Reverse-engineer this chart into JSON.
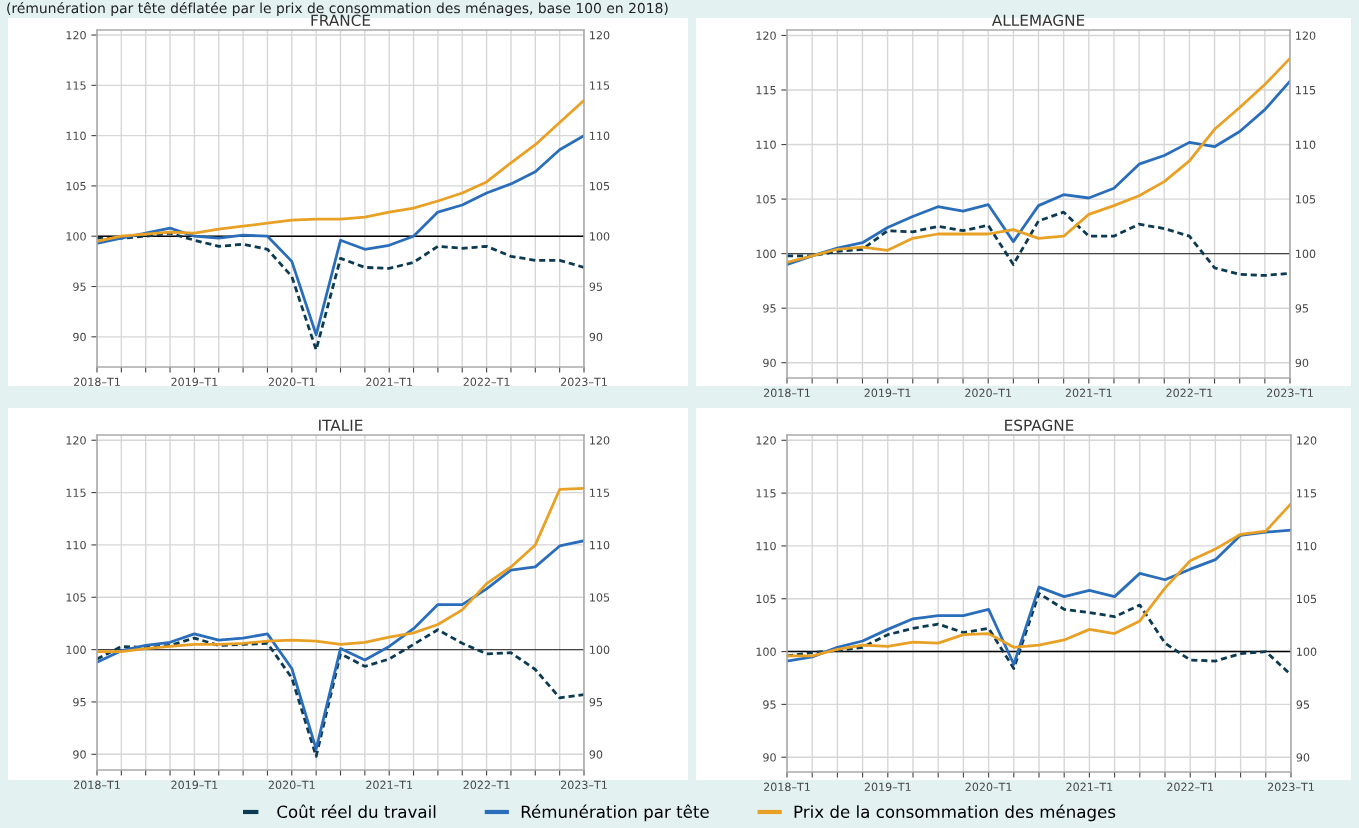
{
  "chart_data": [
    {
      "type": "line",
      "title": "FRANCE",
      "subtitle": "(rémunération par tête déflatée par le prix de consommation des ménages, base 100 en 2018)",
      "categories": [
        "2018–T1",
        null,
        null,
        null,
        "2019–T1",
        null,
        null,
        null,
        "2020–T1",
        null,
        null,
        null,
        "2021–T1",
        null,
        null,
        null,
        "2022–T1",
        null,
        null,
        null,
        "2023–T1"
      ],
      "ylim": [
        87,
        120.5
      ],
      "yticks": [
        90,
        95,
        100,
        105,
        110,
        115,
        120
      ],
      "y2lim": [
        87,
        120.5
      ],
      "y2ticks": [
        90,
        95,
        100,
        105,
        110,
        115,
        120
      ],
      "grid": true,
      "legend": "bottom",
      "line_style": "solid",
      "ref_lines": [
        {
          "axis": "y",
          "value": 100,
          "color": "#000000"
        }
      ],
      "series": [
        {
          "name": "Coût réel du travail",
          "color": "#0b3a52",
          "line_style": "dashed",
          "values": [
            99.8,
            99.8,
            100.0,
            100.3,
            99.6,
            99.0,
            99.2,
            98.7,
            96.0,
            88.7,
            97.8,
            96.9,
            96.8,
            97.4,
            99.0,
            98.8,
            99.0,
            98.0,
            97.6,
            97.6,
            96.9
          ]
        },
        {
          "name": "Rémunération par tête",
          "color": "#2a6ebb",
          "values": [
            99.3,
            99.8,
            100.3,
            100.8,
            100.0,
            99.8,
            100.1,
            100.0,
            97.5,
            90.2,
            99.6,
            98.7,
            99.1,
            100.0,
            102.4,
            103.1,
            104.3,
            105.2,
            106.4,
            108.6,
            110.0
          ]
        },
        {
          "name": "Prix de la consommation des ménages",
          "color": "#e8a025",
          "values": [
            99.5,
            100.0,
            100.2,
            100.4,
            100.3,
            100.7,
            101.0,
            101.3,
            101.6,
            101.7,
            101.7,
            101.9,
            102.4,
            102.8,
            103.5,
            104.3,
            105.4,
            107.3,
            109.1,
            111.3,
            113.5
          ]
        }
      ]
    },
    {
      "type": "line",
      "title": "ALLEMAGNE",
      "categories": [
        "2018–T1",
        null,
        null,
        null,
        "2019–T1",
        null,
        null,
        null,
        "2020–T1",
        null,
        null,
        null,
        "2021–T1",
        null,
        null,
        null,
        "2022–T1",
        null,
        null,
        null,
        "2023–T1"
      ],
      "ylim": [
        88.6,
        120.5
      ],
      "yticks": [
        90,
        95,
        100,
        105,
        110,
        115,
        120
      ],
      "y2lim": [
        88.6,
        120.5
      ],
      "y2ticks": [
        90,
        95,
        100,
        105,
        110,
        115,
        120
      ],
      "grid": true,
      "line_style": "solid",
      "ref_lines": [
        {
          "axis": "y",
          "value": 100,
          "color": "#444444"
        }
      ],
      "series": [
        {
          "color": "#0b3a52",
          "line_style": "dashed",
          "values": [
            99.8,
            99.8,
            100.2,
            100.4,
            102.1,
            102.0,
            102.5,
            102.1,
            102.6,
            99.0,
            103.0,
            103.8,
            101.6,
            101.6,
            102.7,
            102.3,
            101.6,
            98.7,
            98.1,
            98.0,
            98.2
          ]
        },
        {
          "color": "#2a6ebb",
          "values": [
            99.0,
            99.8,
            100.5,
            101.0,
            102.4,
            103.4,
            104.3,
            103.9,
            104.5,
            101.1,
            104.4,
            105.4,
            105.1,
            106.0,
            108.2,
            109.0,
            110.2,
            109.8,
            111.2,
            113.2,
            115.8
          ]
        },
        {
          "color": "#e8a025",
          "values": [
            99.2,
            99.8,
            100.4,
            100.6,
            100.3,
            101.4,
            101.8,
            101.8,
            101.8,
            102.2,
            101.4,
            101.6,
            103.6,
            104.4,
            105.3,
            106.6,
            108.5,
            111.4,
            113.4,
            115.5,
            117.9
          ]
        }
      ]
    },
    {
      "type": "line",
      "title": "ITALIE",
      "categories": [
        "2018–T1",
        null,
        null,
        null,
        "2019–T1",
        null,
        null,
        null,
        "2020–T1",
        null,
        null,
        null,
        "2021–T1",
        null,
        null,
        null,
        "2022–T1",
        null,
        null,
        null,
        "2023–T1"
      ],
      "ylim": [
        88.5,
        120.5
      ],
      "yticks": [
        90,
        95,
        100,
        105,
        110,
        115,
        120
      ],
      "y2lim": [
        88.5,
        120.5
      ],
      "y2ticks": [
        90,
        95,
        100,
        105,
        110,
        115,
        120
      ],
      "grid": true,
      "line_style": "solid",
      "ref_lines": [
        {
          "axis": "y",
          "value": 100,
          "color": "#444444"
        }
      ],
      "series": [
        {
          "color": "#0b3a52",
          "line_style": "dashed",
          "values": [
            99.1,
            100.3,
            100.2,
            100.4,
            101.1,
            100.4,
            100.5,
            100.6,
            97.3,
            89.8,
            99.6,
            98.4,
            99.1,
            100.5,
            101.9,
            100.6,
            99.6,
            99.7,
            98.1,
            95.4,
            95.7
          ]
        },
        {
          "color": "#2a6ebb",
          "values": [
            98.8,
            99.9,
            100.4,
            100.7,
            101.5,
            100.9,
            101.1,
            101.5,
            98.2,
            90.5,
            100.1,
            99.0,
            100.3,
            102.0,
            104.3,
            104.3,
            105.8,
            107.6,
            107.9,
            109.9,
            110.4
          ]
        },
        {
          "color": "#e8a025",
          "values": [
            99.8,
            99.8,
            100.1,
            100.3,
            100.5,
            100.5,
            100.6,
            100.8,
            100.9,
            100.8,
            100.5,
            100.7,
            101.2,
            101.6,
            102.4,
            103.8,
            106.3,
            107.9,
            110.0,
            115.3,
            115.4
          ]
        }
      ]
    },
    {
      "type": "line",
      "title": "ESPAGNE",
      "categories": [
        "2018–T1",
        null,
        null,
        null,
        "2019–T1",
        null,
        null,
        null,
        "2020–T1",
        null,
        null,
        null,
        "2021–T1",
        null,
        null,
        null,
        "2022–T1",
        null,
        null,
        null,
        "2023–T1"
      ],
      "ylim": [
        88.6,
        120.5
      ],
      "yticks": [
        90,
        95,
        100,
        105,
        110,
        115,
        120
      ],
      "y2lim": [
        88.6,
        120.5
      ],
      "y2ticks": [
        90,
        95,
        100,
        105,
        110,
        115,
        120
      ],
      "grid": true,
      "line_style": "solid",
      "ref_lines": [
        {
          "axis": "y",
          "value": 100,
          "color": "#000000"
        }
      ],
      "series": [
        {
          "color": "#0b3a52",
          "line_style": "dashed",
          "values": [
            99.6,
            99.9,
            100.1,
            100.4,
            101.6,
            102.2,
            102.6,
            101.8,
            102.2,
            98.4,
            105.5,
            104.0,
            103.7,
            103.3,
            104.4,
            100.8,
            99.2,
            99.1,
            99.8,
            100.0,
            97.8
          ]
        },
        {
          "color": "#2a6ebb",
          "values": [
            99.1,
            99.5,
            100.4,
            101.0,
            102.1,
            103.1,
            103.4,
            103.4,
            104.0,
            98.8,
            106.1,
            105.2,
            105.8,
            105.2,
            107.4,
            106.8,
            107.8,
            108.7,
            111.0,
            111.3,
            111.5
          ]
        },
        {
          "color": "#e8a025",
          "values": [
            99.6,
            99.6,
            100.2,
            100.6,
            100.5,
            100.9,
            100.8,
            101.6,
            101.7,
            100.4,
            100.6,
            101.1,
            102.1,
            101.7,
            102.9,
            106.0,
            108.6,
            109.7,
            111.1,
            111.4,
            114.0
          ]
        }
      ]
    }
  ]
}
